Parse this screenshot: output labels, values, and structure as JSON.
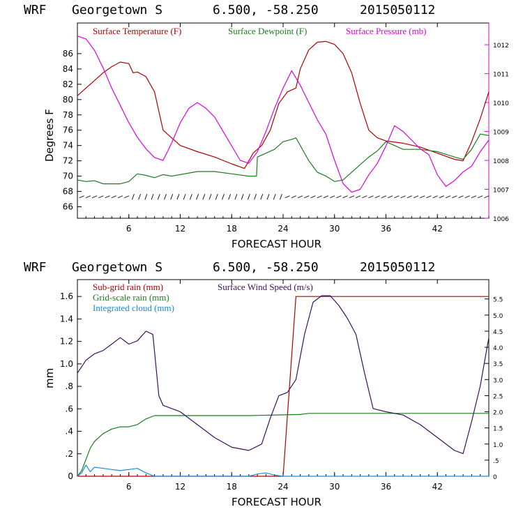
{
  "chart_data": [
    {
      "type": "line",
      "header": {
        "model": "WRF",
        "station": "Georgetown S",
        "coords": "6.500, -58.250",
        "run": "2015050112"
      },
      "xlabel": "FORECAST HOUR",
      "ylabel": "Degrees F",
      "xlim": [
        0,
        48
      ],
      "xticks": [
        6,
        12,
        18,
        24,
        30,
        36,
        42
      ],
      "ylim": [
        64.5,
        90
      ],
      "yticks": [
        66,
        68,
        70,
        72,
        74,
        76,
        78,
        80,
        82,
        84,
        86
      ],
      "y2lim": [
        1006,
        1012.75
      ],
      "y2ticks": [
        1006,
        1007,
        1008,
        1009,
        1010,
        1011,
        1012
      ],
      "legend_position": "top",
      "series": [
        {
          "name": "Surface Temperature (F)",
          "color": "#b00000",
          "axis": "left",
          "x": [
            0,
            1,
            2,
            3,
            4,
            5,
            6,
            6.5,
            7,
            8,
            9,
            10,
            11,
            12,
            14,
            16,
            18,
            19.5,
            20.5,
            21.5,
            22.5,
            23.5,
            24.5,
            25.5,
            26,
            27,
            28,
            29,
            30,
            31,
            32,
            33,
            34,
            35,
            36,
            38,
            40,
            42,
            44,
            45,
            46,
            47,
            48
          ],
          "y": [
            80.5,
            81.5,
            82.5,
            83.5,
            84.3,
            84.9,
            84.7,
            83.5,
            83.6,
            83,
            81,
            76,
            75,
            74,
            73.2,
            72.5,
            71.6,
            71,
            73,
            74,
            76,
            79.5,
            81,
            81.5,
            84,
            86.5,
            87.5,
            87.6,
            87.2,
            86,
            83.5,
            79.5,
            76,
            75,
            74.6,
            74.3,
            73.8,
            73,
            72.2,
            72.0,
            74.5,
            77.5,
            81
          ]
        },
        {
          "name": "Surface Dewpoint (F)",
          "color": "#1e7b1e",
          "axis": "left",
          "x": [
            0,
            1,
            2,
            3,
            4,
            5,
            6,
            7,
            8,
            9,
            10,
            11,
            12,
            14,
            16,
            18,
            20,
            20.9,
            21,
            22,
            23,
            24,
            25,
            25.5,
            26,
            27,
            28,
            29,
            30,
            31,
            32,
            33,
            34,
            35,
            36,
            38,
            40,
            42,
            44,
            45,
            46,
            47,
            48
          ],
          "y": [
            69.5,
            69.3,
            69.4,
            69,
            69,
            69,
            69.3,
            70.3,
            70.1,
            69.8,
            70.2,
            70.0,
            70.2,
            70.6,
            70.6,
            70.3,
            70,
            70.0,
            72.5,
            73,
            73.5,
            74.5,
            74.8,
            75,
            74,
            72,
            70.5,
            70,
            69.3,
            69.5,
            70.5,
            71.5,
            72.5,
            73.3,
            74.5,
            73.5,
            73.5,
            73.2,
            72.5,
            72.2,
            73.5,
            75.5,
            75.3
          ]
        },
        {
          "name": "Surface Pressure (mb)",
          "color": "#e000e0",
          "axis": "right",
          "x": [
            0,
            1,
            2,
            3,
            4,
            5,
            6,
            7,
            8,
            9,
            10,
            11,
            12,
            13,
            14,
            15,
            16,
            17,
            18,
            19,
            20,
            21,
            22,
            23,
            24,
            25,
            26,
            27,
            28,
            29,
            30,
            31,
            32,
            33,
            34,
            35,
            36,
            37,
            38,
            39,
            40,
            41,
            42,
            43,
            44,
            45,
            46,
            47,
            48
          ],
          "y": [
            1012.3,
            1012.2,
            1011.8,
            1011.2,
            1010.5,
            1009.9,
            1009.3,
            1008.8,
            1008.4,
            1008.1,
            1008.0,
            1008.6,
            1009.3,
            1009.8,
            1010.0,
            1009.8,
            1009.5,
            1009.0,
            1008.5,
            1008.0,
            1007.9,
            1008.3,
            1009.0,
            1009.8,
            1010.5,
            1011.1,
            1010.6,
            1010.0,
            1009.4,
            1008.9,
            1008.0,
            1007.2,
            1006.9,
            1007.0,
            1007.5,
            1007.9,
            1008.5,
            1009.2,
            1009.0,
            1008.7,
            1008.4,
            1008.2,
            1007.5,
            1007.1,
            1007.3,
            1007.6,
            1007.8,
            1008.3,
            1008.7
          ]
        }
      ],
      "wind_barbs": true
    },
    {
      "type": "line",
      "header": {
        "model": "WRF",
        "station": "Georgetown S",
        "coords": "6.500, -58.250",
        "run": "2015050112"
      },
      "xlabel": "FORECAST HOUR",
      "ylabel": "mm",
      "xlim": [
        0,
        48
      ],
      "xticks": [
        6,
        12,
        18,
        24,
        30,
        36,
        42
      ],
      "ylim": [
        0,
        1.75
      ],
      "yticks": [
        0,
        0.2,
        0.4,
        0.6,
        0.8,
        1.0,
        1.2,
        1.4,
        1.6
      ],
      "ytick_labels": [
        "0",
        ".2",
        ".4",
        ".6",
        ".8",
        "1.0",
        "1.2",
        "1.4",
        "1.6"
      ],
      "y2lim": [
        0,
        6.1
      ],
      "y2ticks": [
        0,
        0.5,
        1.0,
        1.5,
        2.0,
        2.5,
        3.0,
        3.5,
        4.0,
        4.5,
        5.0,
        5.5
      ],
      "y2tick_labels": [
        "0",
        ".5",
        "1.0",
        "1.5",
        "2.0",
        "2.5",
        "3.0",
        "3.5",
        "4.0",
        "4.5",
        "5.0",
        "5.5"
      ],
      "legend_position": "top-left",
      "series": [
        {
          "name": "Sub-grid rain (mm)",
          "color": "#b00000",
          "axis": "left",
          "x": [
            0,
            23.9,
            24,
            25.5,
            25.6,
            48
          ],
          "y": [
            0,
            0,
            0,
            1.6,
            1.6,
            1.6
          ]
        },
        {
          "name": "Grid-scale rain (mm)",
          "color": "#1e7b1e",
          "axis": "left",
          "x": [
            0,
            0.5,
            1,
            1.5,
            2,
            3,
            4,
            5,
            6,
            7,
            8,
            9,
            10,
            20,
            26,
            27,
            48
          ],
          "y": [
            0,
            0.05,
            0.15,
            0.25,
            0.31,
            0.38,
            0.42,
            0.44,
            0.44,
            0.46,
            0.51,
            0.54,
            0.54,
            0.54,
            0.55,
            0.56,
            0.56
          ]
        },
        {
          "name": "Integrated cloud (mm)",
          "color": "#1a8cd8",
          "axis": "left",
          "x": [
            0,
            0.5,
            1,
            1.5,
            2,
            3,
            4,
            5,
            6,
            7,
            8,
            9,
            10,
            20,
            21,
            22,
            23,
            24,
            48
          ],
          "y": [
            0,
            0.03,
            0.1,
            0.04,
            0.08,
            0.07,
            0.06,
            0.05,
            0.06,
            0.07,
            0.03,
            0,
            0,
            0,
            0.02,
            0.03,
            0.01,
            0,
            0
          ]
        },
        {
          "name": "Surface Wind Speed (m/s)",
          "color": "#3a1060",
          "axis": "right",
          "x": [
            0,
            1,
            2,
            3,
            4,
            5,
            6,
            7,
            8,
            8.8,
            9.5,
            10,
            11,
            12,
            14,
            16,
            18,
            20,
            21.5,
            22.5,
            23.5,
            24.5,
            25.5,
            26.5,
            27.5,
            28.5,
            29.5,
            30.5,
            31.5,
            32.5,
            33.5,
            34.5,
            36,
            38,
            40,
            42,
            44,
            45,
            46,
            47,
            48
          ],
          "y": [
            3.2,
            3.6,
            3.8,
            3.9,
            4.1,
            4.3,
            4.1,
            4.2,
            4.5,
            4.4,
            2.5,
            2.2,
            2.1,
            2.0,
            1.6,
            1.2,
            0.9,
            0.8,
            1.0,
            1.8,
            2.5,
            2.6,
            3.0,
            4.4,
            5.4,
            5.6,
            5.6,
            5.3,
            4.9,
            4.4,
            3.2,
            2.1,
            2.0,
            1.9,
            1.6,
            1.2,
            0.8,
            0.7,
            1.7,
            2.8,
            4.3
          ]
        }
      ]
    }
  ]
}
